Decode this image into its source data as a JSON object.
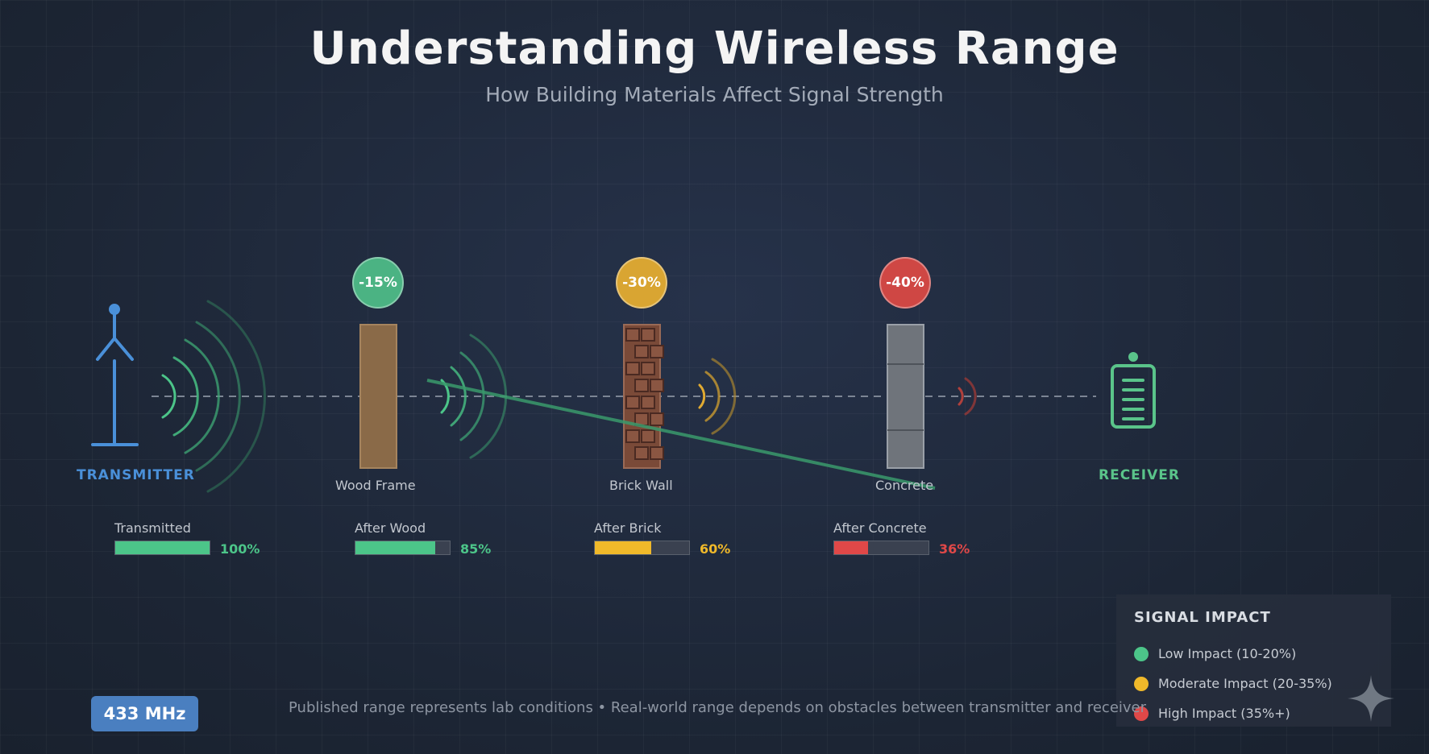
{
  "title": "Understanding Wireless Range",
  "subtitle": "How Building Materials Affect Signal Strength",
  "transmitter": {
    "label": "TRANSMITTER",
    "icon": "antenna-icon",
    "color": "#4a90d9"
  },
  "receiver": {
    "label": "RECEIVER",
    "icon": "receiver-icon",
    "color": "#5ac48a"
  },
  "materials": [
    {
      "name": "Wood Frame",
      "loss": "-15%",
      "color": "#4bb383",
      "material": "wood"
    },
    {
      "name": "Brick Wall",
      "loss": "-30%",
      "color": "#e0aa32",
      "material": "brick"
    },
    {
      "name": "Concrete",
      "loss": "-40%",
      "color": "#d24a46",
      "material": "concrete"
    }
  ],
  "meters": [
    {
      "label": "Transmitted",
      "value": "100%",
      "fraction": 1.0,
      "color": "#4cc589"
    },
    {
      "label": "After Wood",
      "value": "85%",
      "fraction": 0.85,
      "color": "#4cc589"
    },
    {
      "label": "After Brick",
      "value": "60%",
      "fraction": 0.6,
      "color": "#f0b92a"
    },
    {
      "label": "After Concrete",
      "value": "36%",
      "fraction": 0.36,
      "color": "#e04848"
    }
  ],
  "legend": {
    "title": "SIGNAL IMPACT",
    "items": [
      {
        "label": "Low Impact (10-20%)",
        "color": "#4cc589"
      },
      {
        "label": "Moderate Impact (20-35%)",
        "color": "#f0b92a"
      },
      {
        "label": "High Impact (35%+)",
        "color": "#e04848"
      }
    ]
  },
  "frequency": "433 MHz",
  "footnote": "Published range represents lab conditions • Real-world range depends on obstacles between transmitter and receiver",
  "corner_icon": "sparkle-icon"
}
